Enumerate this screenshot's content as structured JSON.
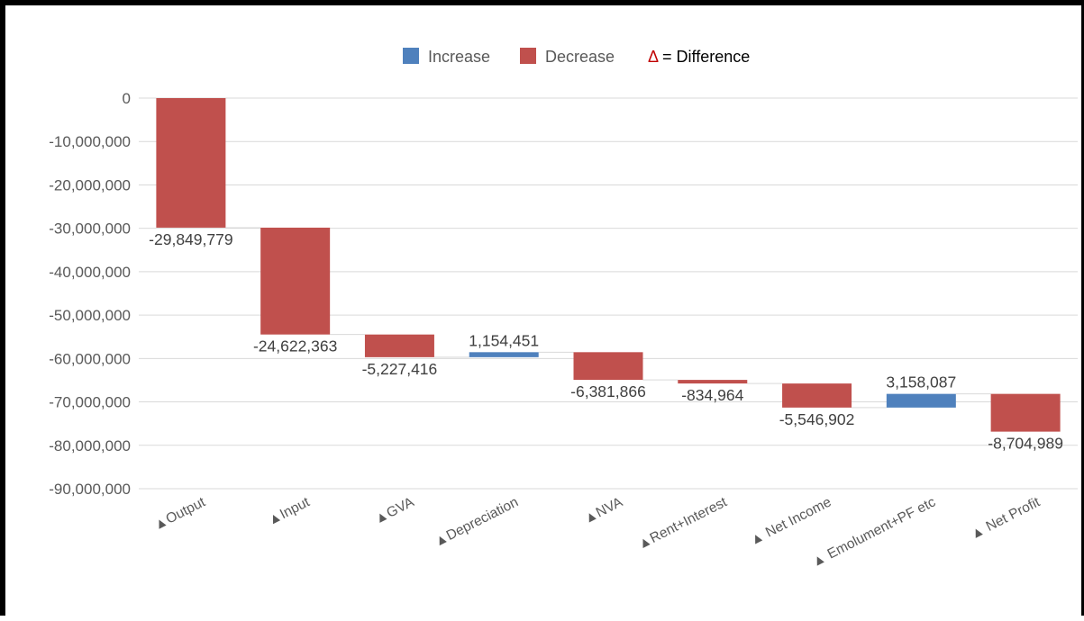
{
  "chart_data": {
    "type": "bar",
    "subtype": "waterfall",
    "title": "",
    "xlabel": "",
    "ylabel": "",
    "categories": [
      "▲Output",
      "▲Input",
      "▲GVA",
      "▲Depreciation",
      "▲NVA",
      "▲Rent+Interest",
      "▲ Net Income",
      "▲ Emolument+PF etc",
      "▲ Net Profit"
    ],
    "values": [
      -29849779,
      -24622363,
      -5227416,
      1154451,
      -6381866,
      -834964,
      -5546902,
      3158087,
      -8704989
    ],
    "value_labels": [
      "-29,849,779",
      "-24,622,363",
      "-5,227,416",
      "1,154,451",
      "-6,381,866",
      "-834,964",
      "-5,546,902",
      "3,158,087",
      "-8,704,989"
    ],
    "ylim": [
      -90000000,
      0
    ],
    "y_ticks": [
      0,
      -10000000,
      -20000000,
      -30000000,
      -40000000,
      -50000000,
      -60000000,
      -70000000,
      -80000000,
      -90000000
    ],
    "y_tick_labels": [
      "0",
      "-10,000,000",
      "-20,000,000",
      "-30,000,000",
      "-40,000,000",
      "-50,000,000",
      "-60,000,000",
      "-70,000,000",
      "-80,000,000",
      "-90,000,000"
    ],
    "grid": true,
    "legend": {
      "position": "top",
      "items": [
        {
          "label": "Increase",
          "color": "#4f81bd"
        },
        {
          "label": "Decrease",
          "color": "#c0504d"
        }
      ],
      "note_symbol": "Δ",
      "note_text": " = Difference"
    },
    "colors": {
      "increase": "#4f81bd",
      "decrease": "#c0504d",
      "grid": "#d9d9d9",
      "connector": "#d9d9d9"
    }
  }
}
